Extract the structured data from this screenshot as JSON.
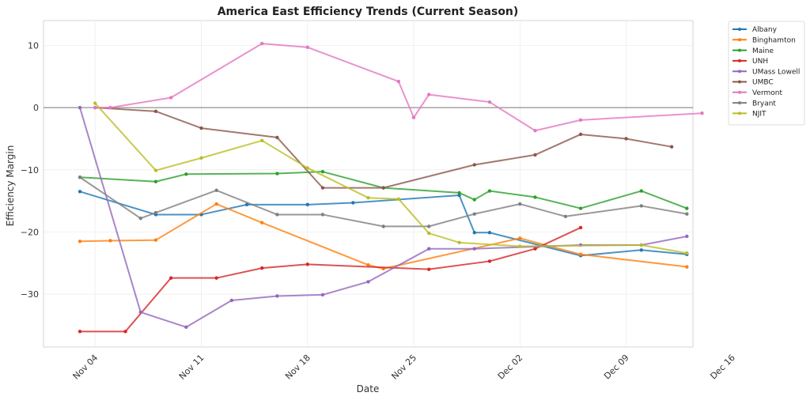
{
  "chart_data": {
    "type": "line",
    "title": "America East Efficiency Trends (Current Season)",
    "xlabel": "Date",
    "ylabel": "Efficiency Margin",
    "x_ticks": [
      "Nov 04",
      "Nov 11",
      "Nov 18",
      "Nov 25",
      "Dec 02",
      "Dec 09",
      "Dec 16"
    ],
    "y_ticks": [
      10,
      0,
      -10,
      -20,
      -30
    ],
    "xlim_days_from_nov04": [
      -3.4,
      39.4
    ],
    "ylim": [
      -38.5,
      14
    ],
    "grid": true,
    "reference_line_y": 0,
    "legend_position": "outside-top-right",
    "series": [
      {
        "name": "Albany",
        "color": "#1f77b4",
        "points": [
          [
            "Nov 03",
            -13.5
          ],
          [
            "Nov 08",
            -17.2
          ],
          [
            "Nov 11",
            -17.2
          ],
          [
            "Nov 14",
            -15.6
          ],
          [
            "Nov 18",
            -15.6
          ],
          [
            "Nov 21",
            -15.3
          ],
          [
            "Nov 28",
            -14.1
          ],
          [
            "Nov 29",
            -20.1
          ],
          [
            "Nov 30",
            -20.1
          ],
          [
            "Dec 06",
            -23.8
          ],
          [
            "Dec 10",
            -22.9
          ],
          [
            "Dec 13",
            -23.6
          ]
        ]
      },
      {
        "name": "Binghamton",
        "color": "#ff7f0e",
        "points": [
          [
            "Nov 03",
            -21.5
          ],
          [
            "Nov 05",
            -21.4
          ],
          [
            "Nov 08",
            -21.3
          ],
          [
            "Nov 12",
            -15.5
          ],
          [
            "Nov 15",
            -18.5
          ],
          [
            "Nov 22",
            -25.3
          ],
          [
            "Nov 23",
            -25.9
          ],
          [
            "Dec 02",
            -21.0
          ],
          [
            "Dec 06",
            -23.6
          ],
          [
            "Dec 13",
            -25.6
          ]
        ]
      },
      {
        "name": "Maine",
        "color": "#2ca02c",
        "points": [
          [
            "Nov 03",
            -11.2
          ],
          [
            "Nov 08",
            -11.9
          ],
          [
            "Nov 10",
            -10.7
          ],
          [
            "Nov 16",
            -10.6
          ],
          [
            "Nov 19",
            -10.3
          ],
          [
            "Nov 23",
            -12.9
          ],
          [
            "Nov 28",
            -13.7
          ],
          [
            "Nov 29",
            -14.8
          ],
          [
            "Nov 30",
            -13.4
          ],
          [
            "Dec 03",
            -14.4
          ],
          [
            "Dec 06",
            -16.2
          ],
          [
            "Dec 10",
            -13.4
          ],
          [
            "Dec 13",
            -16.2
          ]
        ]
      },
      {
        "name": "UNH",
        "color": "#d62728",
        "points": [
          [
            "Nov 03",
            -36.0
          ],
          [
            "Nov 06",
            -36.0
          ],
          [
            "Nov 09",
            -27.4
          ],
          [
            "Nov 12",
            -27.4
          ],
          [
            "Nov 15",
            -25.8
          ],
          [
            "Nov 18",
            -25.2
          ],
          [
            "Nov 26",
            -26.0
          ],
          [
            "Nov 30",
            -24.7
          ],
          [
            "Dec 03",
            -22.7
          ],
          [
            "Dec 06",
            -19.3
          ]
        ]
      },
      {
        "name": "UMass Lowell",
        "color": "#9467bd",
        "points": [
          [
            "Nov 03",
            0.0
          ],
          [
            "Nov 07",
            -32.9
          ],
          [
            "Nov 10",
            -35.3
          ],
          [
            "Nov 13",
            -31.0
          ],
          [
            "Nov 16",
            -30.3
          ],
          [
            "Nov 19",
            -30.1
          ],
          [
            "Nov 22",
            -28.0
          ],
          [
            "Nov 26",
            -22.7
          ],
          [
            "Nov 29",
            -22.7
          ],
          [
            "Dec 06",
            -22.1
          ],
          [
            "Dec 10",
            -22.1
          ],
          [
            "Dec 13",
            -20.7
          ]
        ]
      },
      {
        "name": "UMBC",
        "color": "#8c564b",
        "points": [
          [
            "Nov 04",
            0.0
          ],
          [
            "Nov 08",
            -0.6
          ],
          [
            "Nov 11",
            -3.3
          ],
          [
            "Nov 16",
            -4.8
          ],
          [
            "Nov 19",
            -12.9
          ],
          [
            "Nov 23",
            -12.9
          ],
          [
            "Nov 29",
            -9.2
          ],
          [
            "Dec 03",
            -7.6
          ],
          [
            "Dec 06",
            -4.3
          ],
          [
            "Dec 09",
            -5.0
          ],
          [
            "Dec 12",
            -6.3
          ]
        ]
      },
      {
        "name": "Vermont",
        "color": "#e377c2",
        "points": [
          [
            "Nov 04",
            0.0
          ],
          [
            "Nov 05",
            0.0
          ],
          [
            "Nov 09",
            1.6
          ],
          [
            "Nov 15",
            10.3
          ],
          [
            "Nov 18",
            9.7
          ],
          [
            "Nov 24",
            4.2
          ],
          [
            "Nov 25",
            -1.6
          ],
          [
            "Nov 26",
            2.1
          ],
          [
            "Nov 30",
            0.9
          ],
          [
            "Dec 03",
            -3.7
          ],
          [
            "Dec 06",
            -2.0
          ],
          [
            "Dec 14",
            -0.9
          ]
        ]
      },
      {
        "name": "Bryant",
        "color": "#7f7f7f",
        "points": [
          [
            "Nov 03",
            -11.2
          ],
          [
            "Nov 07",
            -17.8
          ],
          [
            "Nov 08",
            -16.9
          ],
          [
            "Nov 12",
            -13.3
          ],
          [
            "Nov 16",
            -17.2
          ],
          [
            "Nov 19",
            -17.2
          ],
          [
            "Nov 23",
            -19.1
          ],
          [
            "Nov 26",
            -19.1
          ],
          [
            "Nov 29",
            -17.1
          ],
          [
            "Dec 02",
            -15.5
          ],
          [
            "Dec 05",
            -17.5
          ],
          [
            "Dec 10",
            -15.8
          ],
          [
            "Dec 13",
            -17.1
          ]
        ]
      },
      {
        "name": "NJIT",
        "color": "#bcbd22",
        "points": [
          [
            "Nov 04",
            0.7
          ],
          [
            "Nov 08",
            -10.1
          ],
          [
            "Nov 11",
            -8.1
          ],
          [
            "Nov 15",
            -5.3
          ],
          [
            "Nov 18",
            -9.7
          ],
          [
            "Nov 22",
            -14.5
          ],
          [
            "Nov 24",
            -14.7
          ],
          [
            "Nov 26",
            -20.2
          ],
          [
            "Nov 28",
            -21.7
          ],
          [
            "Dec 02",
            -22.3
          ],
          [
            "Dec 10",
            -22.1
          ],
          [
            "Dec 13",
            -23.4
          ]
        ]
      }
    ]
  }
}
